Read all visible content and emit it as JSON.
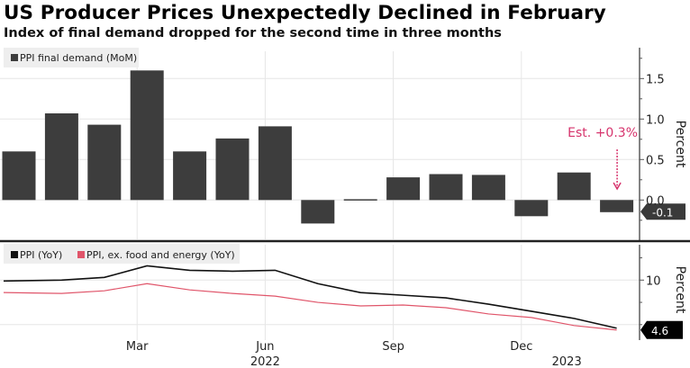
{
  "header": {
    "title": "US Producer Prices Unexpectedly Declined in February",
    "subtitle": "Index of final demand dropped for the second time in three months"
  },
  "colors": {
    "bar": "#3d3d3d",
    "ppi_line": "#111111",
    "core_line": "#e0556a",
    "annotation": "#d6336c",
    "grid": "#e6e6e6",
    "legend_bg": "#eeeeee"
  },
  "chart_data": [
    {
      "type": "bar",
      "title": "PPI final demand (MoM)",
      "ylabel": "Percent",
      "ylim": [
        -0.3,
        1.85
      ],
      "yticks": [
        0.0,
        0.5,
        1.0,
        1.5
      ],
      "ytick_labels": [
        "0.0",
        "0.5",
        "1.0",
        "1.5"
      ],
      "grid": true,
      "legend": "top-left",
      "categories": [
        "Dec 2021",
        "Jan 2022",
        "Feb 2022",
        "Mar 2022",
        "Apr 2022",
        "May 2022",
        "Jun 2022",
        "Jul 2022",
        "Aug 2022",
        "Sep 2022",
        "Oct 2022",
        "Nov 2022",
        "Dec 2022",
        "Jan 2023",
        "Feb 2023"
      ],
      "series": [
        {
          "name": "PPI final demand (MoM)",
          "values": [
            0.6,
            1.07,
            0.93,
            1.6,
            0.6,
            0.76,
            0.91,
            -0.29,
            0.01,
            0.28,
            0.32,
            0.31,
            -0.2,
            0.34,
            -0.15
          ]
        }
      ],
      "last_value_label": "-0.1",
      "annotations": [
        {
          "text": "Est. +0.3%",
          "target_category": "Feb 2023",
          "value": 0.3
        }
      ]
    },
    {
      "type": "line",
      "ylabel": "Percent",
      "ylim": [
        3.6,
        12.8
      ],
      "yticks": [
        10
      ],
      "ytick_labels": [
        "10"
      ],
      "grid": true,
      "legend": "top-left",
      "categories": [
        "Dec 2021",
        "Jan 2022",
        "Feb 2022",
        "Mar 2022",
        "Apr 2022",
        "May 2022",
        "Jun 2022",
        "Jul 2022",
        "Aug 2022",
        "Sep 2022",
        "Oct 2022",
        "Nov 2022",
        "Dec 2022",
        "Jan 2023",
        "Feb 2023"
      ],
      "series": [
        {
          "name": "PPI (YoY)",
          "values": [
            9.9,
            10.0,
            10.3,
            11.6,
            11.1,
            11.0,
            11.1,
            9.6,
            8.6,
            8.3,
            8.0,
            7.3,
            6.5,
            5.7,
            4.6
          ]
        },
        {
          "name": "PPI, ex. food and energy (YoY)",
          "values": [
            8.6,
            8.5,
            8.8,
            9.6,
            8.9,
            8.5,
            8.2,
            7.5,
            7.1,
            7.2,
            6.9,
            6.2,
            5.8,
            4.9,
            4.4
          ]
        }
      ],
      "last_value_label": "4.6",
      "xticks": [
        "Mar",
        "Jun",
        "Sep",
        "Dec"
      ],
      "xtick_categories": [
        "Mar 2022",
        "Jun 2022",
        "Sep 2022",
        "Dec 2022"
      ],
      "year_labels": [
        {
          "text": "2022",
          "category": "Jun 2022"
        },
        {
          "text": "2023",
          "category": "Jan 2023"
        }
      ]
    }
  ]
}
